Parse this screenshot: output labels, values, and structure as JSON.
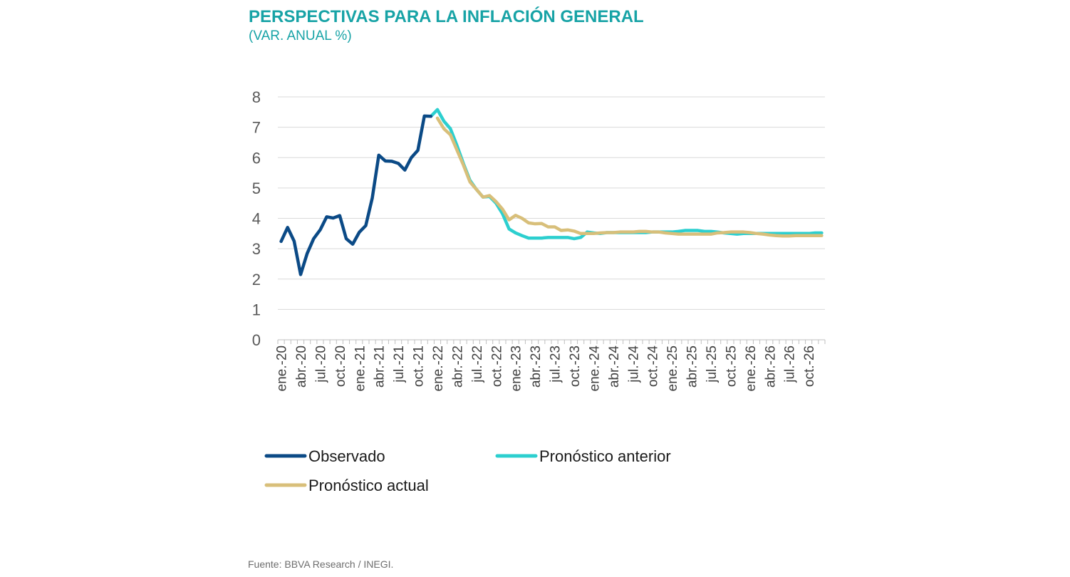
{
  "header": {
    "title": "PERSPECTIVAS PARA LA INFLACIÓN GENERAL",
    "subtitle": "(VAR. ANUAL %)"
  },
  "footer": {
    "source": "Fuente: BBVA Research / INEGI."
  },
  "colors": {
    "title": "#17a3a6",
    "observado": "#0b4a86",
    "anterior": "#2ccfcf",
    "actual": "#d8bf7a",
    "grid": "#d9d9d9"
  },
  "chart_data": {
    "type": "line",
    "title": "PERSPECTIVAS PARA LA INFLACIÓN GENERAL",
    "subtitle": "(VAR. ANUAL %)",
    "xlabel": "",
    "ylabel": "",
    "ylim": [
      0,
      8
    ],
    "yticks": [
      0,
      1,
      2,
      3,
      4,
      5,
      6,
      7,
      8
    ],
    "grid": true,
    "legend_position": "bottom",
    "x_start": "2020-01",
    "x_count": 84,
    "xtick_labels": [
      "ene.-20",
      "abr.-20",
      "jul.-20",
      "oct.-20",
      "ene.-21",
      "abr.-21",
      "jul.-21",
      "oct.-21",
      "ene.-22",
      "abr.-22",
      "jul.-22",
      "oct.-22",
      "ene.-23",
      "abr.-23",
      "jul.-23",
      "oct.-23",
      "ene.-24",
      "abr.-24",
      "jul.-24",
      "oct.-24",
      "ene.-25",
      "abr.-25",
      "jul.-25",
      "oct.-25",
      "ene.-26",
      "abr.-26",
      "jul.-26",
      "oct.-26"
    ],
    "series": [
      {
        "name": "Observado",
        "color": "#0b4a86",
        "start_index": 0,
        "values": [
          3.24,
          3.7,
          3.25,
          2.15,
          2.84,
          3.33,
          3.62,
          4.05,
          4.01,
          4.09,
          3.33,
          3.15,
          3.54,
          3.76,
          4.67,
          6.08,
          5.89,
          5.88,
          5.81,
          5.59,
          6.0,
          6.24,
          7.37,
          7.36
        ]
      },
      {
        "name": "Pronóstico anterior",
        "color": "#2ccfcf",
        "start_index": 23,
        "values": [
          7.36,
          7.58,
          7.2,
          6.95,
          6.4,
          5.8,
          5.25,
          4.95,
          4.7,
          4.72,
          4.5,
          4.15,
          3.65,
          3.52,
          3.43,
          3.35,
          3.35,
          3.35,
          3.37,
          3.37,
          3.37,
          3.37,
          3.33,
          3.37,
          3.55,
          3.52,
          3.5,
          3.53,
          3.53,
          3.53,
          3.53,
          3.53,
          3.53,
          3.53,
          3.55,
          3.55,
          3.55,
          3.55,
          3.57,
          3.6,
          3.6,
          3.6,
          3.57,
          3.57,
          3.55,
          3.52,
          3.5,
          3.48,
          3.5,
          3.5,
          3.5,
          3.5,
          3.5,
          3.5,
          3.5,
          3.5,
          3.5,
          3.5,
          3.5,
          3.52,
          3.52
        ]
      },
      {
        "name": "Pronóstico actual",
        "color": "#d8bf7a",
        "start_index": 24,
        "values": [
          7.3,
          6.95,
          6.75,
          6.25,
          5.75,
          5.2,
          4.95,
          4.7,
          4.75,
          4.55,
          4.3,
          3.95,
          4.1,
          4.0,
          3.85,
          3.82,
          3.83,
          3.72,
          3.72,
          3.6,
          3.62,
          3.58,
          3.5,
          3.5,
          3.5,
          3.52,
          3.53,
          3.53,
          3.55,
          3.55,
          3.55,
          3.57,
          3.57,
          3.55,
          3.55,
          3.52,
          3.5,
          3.48,
          3.48,
          3.48,
          3.48,
          3.48,
          3.48,
          3.52,
          3.53,
          3.55,
          3.55,
          3.55,
          3.53,
          3.5,
          3.48,
          3.45,
          3.43,
          3.42,
          3.42,
          3.43,
          3.43,
          3.43,
          3.43,
          3.43
        ]
      }
    ]
  }
}
